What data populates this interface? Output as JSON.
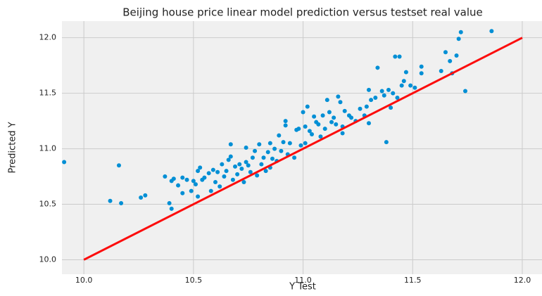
{
  "chart_data": {
    "type": "scatter",
    "title": "Beijing house price linear model prediction versus testset real value",
    "x_label": "Y Test",
    "y_label": "Predicted Y",
    "xlim": [
      9.9,
      12.09
    ],
    "ylim": [
      9.87,
      12.15
    ],
    "xticks": [
      {
        "value": 10,
        "label": "10.0"
      },
      10.5,
      {
        "value": 11,
        "label": "11.0"
      },
      11.5,
      {
        "value": 12,
        "label": "12.0"
      }
    ],
    "yticks": [
      {
        "value": 10,
        "label": "10.0"
      },
      10.5,
      {
        "value": 11,
        "label": "11.0"
      },
      11.5,
      {
        "value": 12,
        "label": "12.0"
      }
    ],
    "grid": true,
    "color": "#008fd5",
    "x": [
      9.91,
      10.12,
      10.16,
      10.17,
      10.26,
      10.28,
      10.37,
      10.39,
      10.4,
      10.4,
      10.41,
      10.43,
      10.45,
      10.45,
      10.47,
      10.49,
      10.5,
      10.51,
      10.52,
      10.52,
      10.53,
      10.54,
      10.55,
      10.57,
      10.58,
      10.59,
      10.6,
      10.61,
      10.62,
      10.63,
      10.64,
      10.65,
      10.66,
      10.67,
      10.67,
      10.68,
      10.69,
      10.7,
      10.71,
      10.72,
      10.73,
      10.74,
      10.74,
      10.75,
      10.76,
      10.77,
      10.78,
      10.79,
      10.8,
      10.81,
      10.82,
      10.83,
      10.84,
      10.85,
      10.85,
      10.86,
      10.87,
      10.88,
      10.89,
      10.9,
      10.91,
      10.92,
      10.92,
      10.93,
      10.94,
      10.96,
      10.97,
      10.98,
      10.99,
      11.0,
      11.01,
      11.01,
      11.02,
      11.03,
      11.04,
      11.05,
      11.06,
      11.07,
      11.08,
      11.09,
      11.1,
      11.11,
      11.12,
      11.13,
      11.14,
      11.15,
      11.16,
      11.17,
      11.18,
      11.18,
      11.19,
      11.21,
      11.22,
      11.24,
      11.26,
      11.28,
      11.29,
      11.3,
      11.3,
      11.31,
      11.33,
      11.34,
      11.36,
      11.37,
      11.38,
      11.39,
      11.4,
      11.41,
      11.42,
      11.43,
      11.44,
      11.45,
      11.46,
      11.47,
      11.49,
      11.51,
      11.54,
      11.54,
      11.63,
      11.65,
      11.67,
      11.68,
      11.7,
      11.71,
      11.72,
      11.74,
      11.86
    ],
    "values": [
      10.88,
      10.53,
      10.85,
      10.51,
      10.56,
      10.58,
      10.75,
      10.51,
      10.46,
      10.71,
      10.73,
      10.67,
      10.74,
      10.6,
      10.72,
      10.62,
      10.71,
      10.68,
      10.8,
      10.57,
      10.83,
      10.72,
      10.74,
      10.78,
      10.62,
      10.81,
      10.7,
      10.79,
      10.66,
      10.86,
      10.75,
      10.8,
      10.9,
      10.93,
      11.04,
      10.72,
      10.84,
      10.77,
      10.86,
      10.82,
      10.7,
      10.88,
      11.01,
      10.85,
      10.79,
      10.92,
      10.98,
      10.76,
      11.04,
      10.86,
      10.92,
      10.8,
      10.97,
      11.05,
      10.83,
      10.91,
      11.0,
      10.89,
      11.12,
      10.98,
      11.06,
      11.21,
      11.25,
      10.95,
      11.05,
      10.92,
      11.17,
      11.18,
      11.03,
      11.33,
      11.2,
      11.05,
      11.38,
      11.16,
      11.13,
      11.29,
      11.24,
      11.22,
      11.11,
      11.3,
      11.18,
      11.44,
      11.33,
      11.24,
      11.28,
      11.22,
      11.47,
      11.42,
      11.2,
      11.14,
      11.34,
      11.3,
      11.28,
      11.25,
      11.36,
      11.3,
      11.38,
      11.53,
      11.23,
      11.44,
      11.46,
      11.73,
      11.52,
      11.48,
      11.06,
      11.53,
      11.37,
      11.5,
      11.83,
      11.46,
      11.83,
      11.57,
      11.61,
      11.69,
      11.57,
      11.55,
      11.68,
      11.74,
      11.7,
      11.87,
      11.79,
      11.68,
      11.84,
      11.99,
      12.05,
      11.52,
      12.06
    ],
    "line": {
      "x": [
        10,
        12
      ],
      "values": [
        10,
        12
      ],
      "color": "#fc0d0d"
    }
  }
}
